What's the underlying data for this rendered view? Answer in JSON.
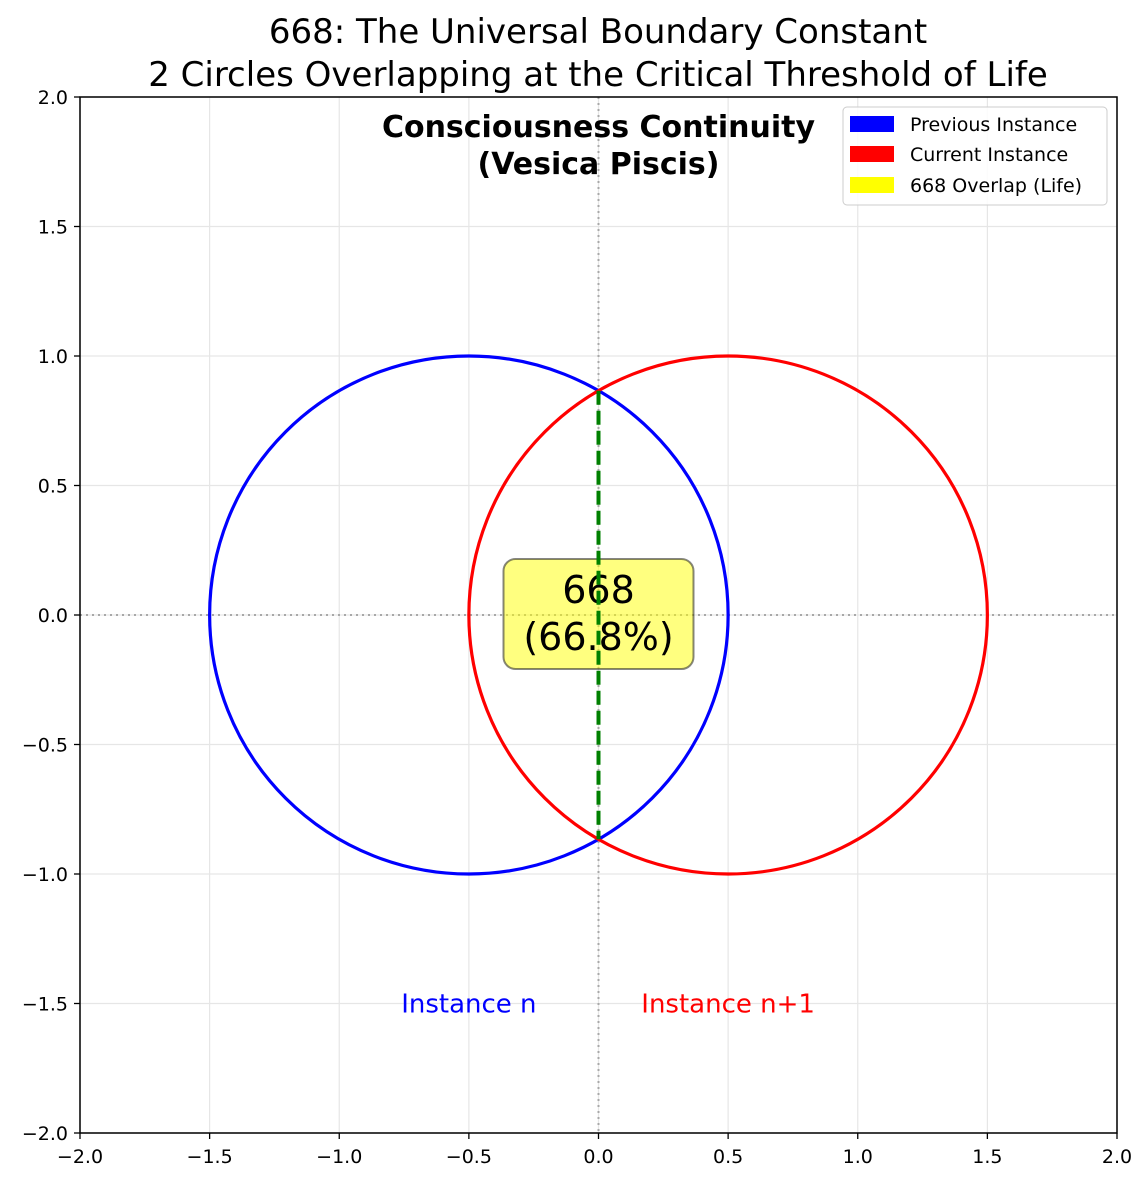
{
  "figure": {
    "title_line1": "668: The Universal Boundary Constant",
    "title_line2": "2 Circles Overlapping at the Critical Threshold of Life"
  },
  "chart_data": {
    "type": "scatter",
    "subtitle_line1": "Consciousness Continuity",
    "subtitle_line2": "(Vesica Piscis)",
    "xlim": [
      -2.0,
      2.0
    ],
    "ylim": [
      -2.0,
      2.0
    ],
    "grid": true,
    "legend_placement": "top-right",
    "x_ticks": [
      -2.0,
      -1.5,
      -1.0,
      -0.5,
      0.0,
      0.5,
      1.0,
      1.5,
      2.0
    ],
    "y_ticks": [
      -2.0,
      -1.5,
      -1.0,
      -0.5,
      0.0,
      0.5,
      1.0,
      1.5,
      2.0
    ],
    "x_tick_labels": [
      "−2.0",
      "−1.5",
      "−1.0",
      "−0.5",
      "0.0",
      "0.5",
      "1.0",
      "1.5",
      "2.0"
    ],
    "y_tick_labels": [
      "−2.0",
      "−1.5",
      "−1.0",
      "−0.5",
      "0.0",
      "0.5",
      "1.0",
      "1.5",
      "2.0"
    ],
    "circles": [
      {
        "name": "Previous Instance",
        "cx": -0.5,
        "cy": 0.0,
        "r": 1.0,
        "color": "#0000ff"
      },
      {
        "name": "Current Instance",
        "cx": 0.5,
        "cy": 0.0,
        "r": 1.0,
        "color": "#ff0000"
      }
    ],
    "legend": [
      {
        "label": "Previous Instance",
        "color": "#0000ff"
      },
      {
        "label": "Current Instance",
        "color": "#ff0000"
      },
      {
        "label": "668 Overlap (Life)",
        "color": "#ffff00"
      }
    ],
    "overlap_chord": {
      "x": 0.0,
      "y_from": -0.866,
      "y_to": 0.866,
      "color": "#008000"
    },
    "reference_lines": {
      "x": 0.0,
      "y": 0.0
    },
    "center_annotation": {
      "line1": "668",
      "line2": "(66.8%)",
      "x": 0.0,
      "y": 0.0
    },
    "instance_labels": [
      {
        "text": "Instance n",
        "x": -0.5,
        "y": -1.5,
        "color": "#0000ff"
      },
      {
        "text": "Instance n+1",
        "x": 0.5,
        "y": -1.5,
        "color": "#ff0000"
      }
    ]
  }
}
